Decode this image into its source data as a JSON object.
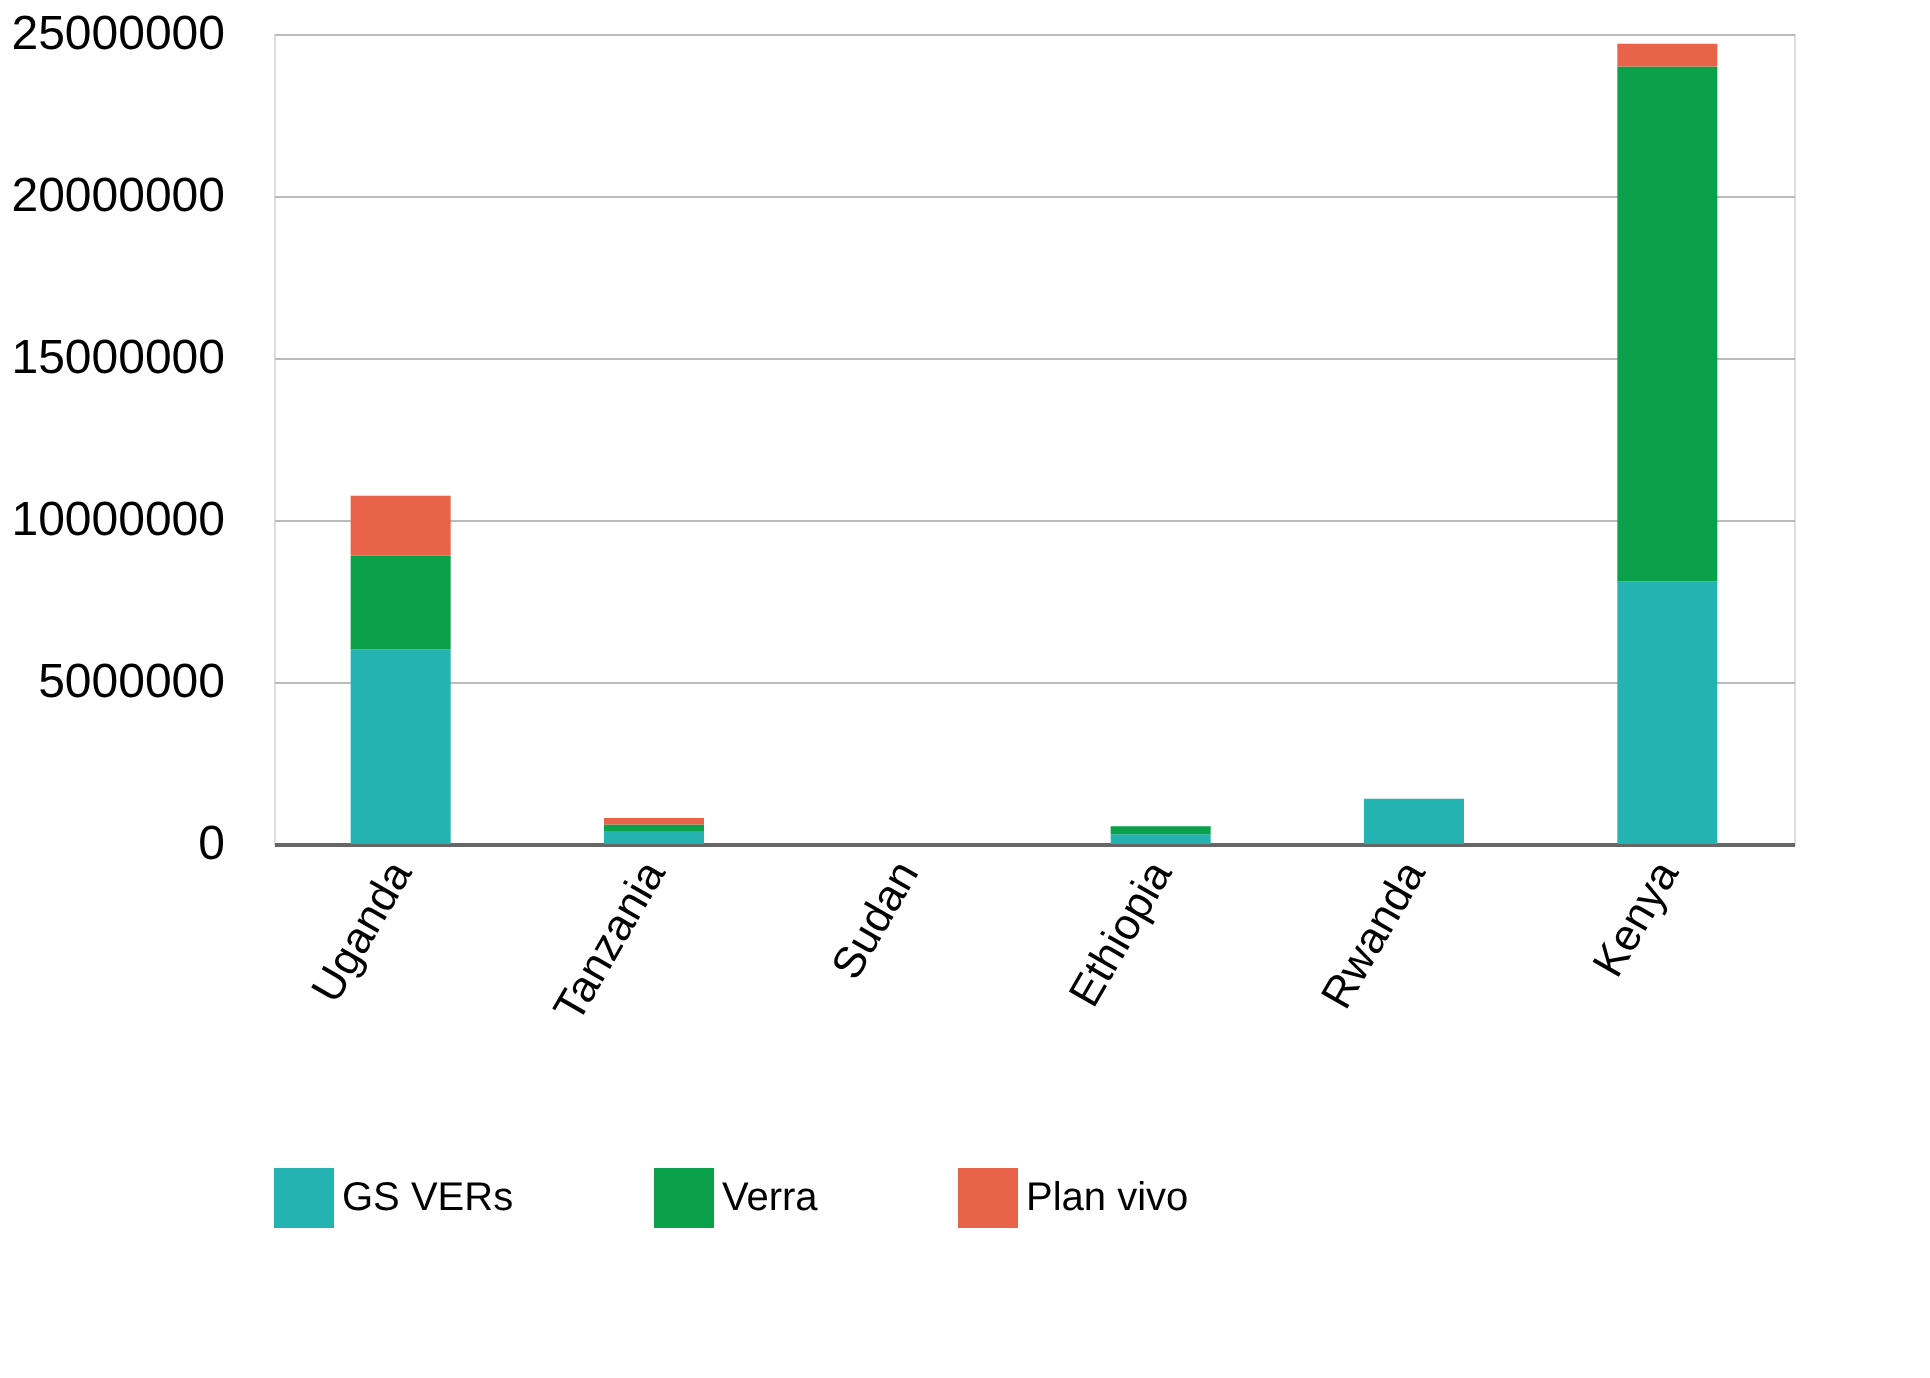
{
  "chart_data": {
    "type": "bar",
    "stacked": true,
    "categories": [
      "Uganda",
      "Tanzania",
      "Sudan",
      "Ethiopia",
      "Rwanda",
      "Kenya"
    ],
    "series": [
      {
        "name": "GS VERs",
        "color": "#24b3b0",
        "values": [
          6000000,
          400000,
          0,
          300000,
          1400000,
          8100000
        ]
      },
      {
        "name": "Verra",
        "color": "#0aa14a",
        "values": [
          2900000,
          200000,
          0,
          250000,
          0,
          15900000
        ]
      },
      {
        "name": "Plan vivo",
        "color": "#e8634a",
        "values": [
          1850000,
          200000,
          0,
          0,
          0,
          700000
        ]
      }
    ],
    "ylim": [
      0,
      25000000
    ],
    "yticks": [
      0,
      5000000,
      10000000,
      15000000,
      20000000,
      25000000
    ],
    "grid": "y",
    "legend": "bottom"
  }
}
